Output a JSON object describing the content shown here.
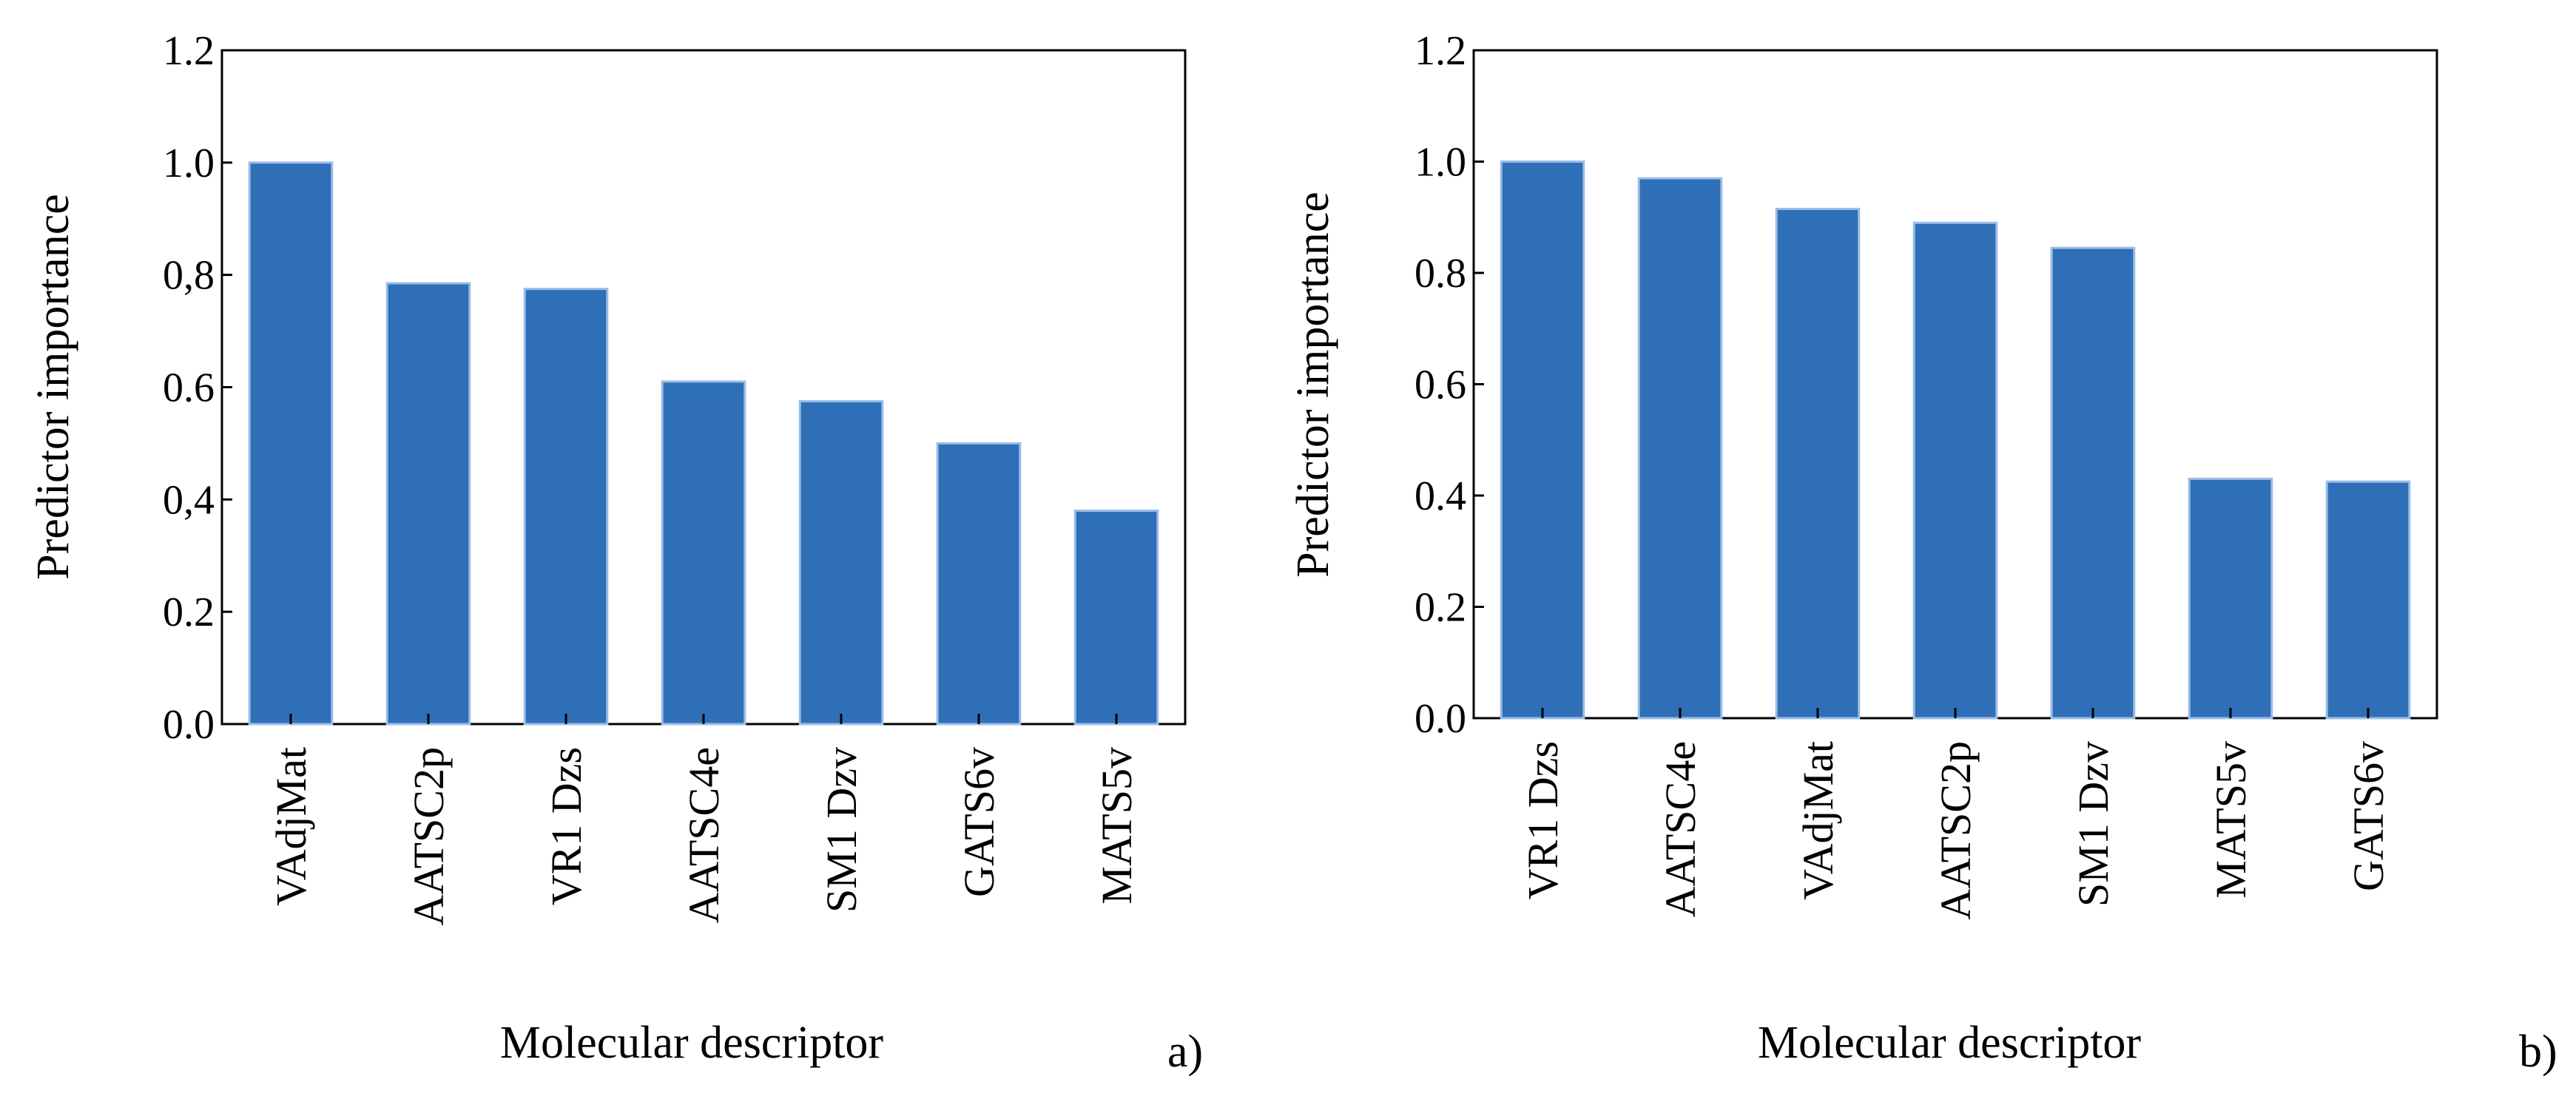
{
  "chart_data": [
    {
      "type": "bar",
      "panel_label": "a)",
      "categories": [
        "VAdjMat",
        "AATSC2p",
        "VR1 Dzs",
        "AATSC4e",
        "SM1 Dzv",
        "GATS6v",
        "MATS5v"
      ],
      "values": [
        1.0,
        0.785,
        0.775,
        0.61,
        0.575,
        0.5,
        0.38
      ],
      "ylim": [
        0,
        1.2
      ],
      "yticks": [
        "0.0",
        "0.2",
        "0,4",
        "0.6",
        "0,8",
        "1.0",
        "1.2"
      ],
      "xlabel": "Molecular descriptor",
      "ylabel": "Predictor importance",
      "color": "#2e6fb8"
    },
    {
      "type": "bar",
      "panel_label": "b)",
      "categories": [
        "VR1 Dzs",
        "AATSC4e",
        "VAdjMat",
        "AATSC2p",
        "SM1 Dzv",
        "MATS5v",
        "GATS6v"
      ],
      "values": [
        1.0,
        0.97,
        0.915,
        0.89,
        0.845,
        0.43,
        0.425
      ],
      "ylim": [
        0,
        1.2
      ],
      "yticks": [
        "0.0",
        "0.2",
        "0.4",
        "0.6",
        "0.8",
        "1.0",
        "1.2"
      ],
      "xlabel": "Molecular descriptor",
      "ylabel": "Predictor importance",
      "color": "#2e6fb8"
    }
  ]
}
